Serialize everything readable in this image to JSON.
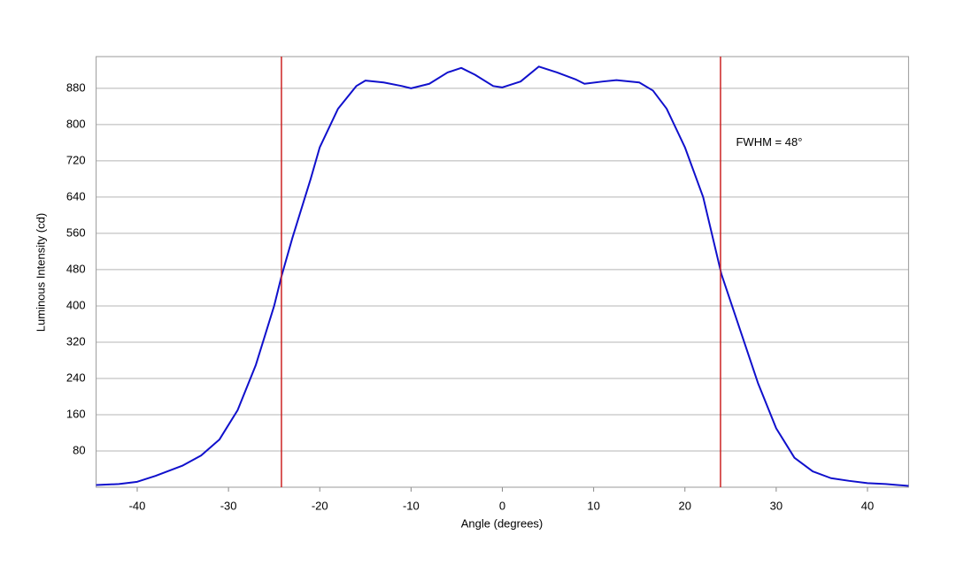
{
  "chart_data": {
    "type": "line",
    "x_label": "Angle (degrees)",
    "y_label": "Luminous Intensity (cd)",
    "x": [
      -44.5,
      -42,
      -40,
      -38,
      -35,
      -33,
      -31,
      -29,
      -27,
      -25,
      -24.2,
      -23,
      -21,
      -20,
      -18,
      -16,
      -15,
      -13,
      -11,
      -10,
      -8,
      -6,
      -4.5,
      -3,
      -1,
      0,
      2,
      4,
      6,
      8,
      9,
      11,
      12.5,
      15,
      16.5,
      18,
      20,
      22,
      24,
      26,
      28,
      30,
      32,
      34,
      36,
      38,
      40,
      42,
      44.5
    ],
    "series": [
      {
        "color": "#1010cc",
        "values": [
          5,
          7,
          12,
          25,
          48,
          70,
          105,
          170,
          270,
          400,
          465,
          550,
          680,
          750,
          835,
          885,
          897,
          893,
          885,
          880,
          890,
          915,
          925,
          910,
          885,
          882,
          895,
          928,
          915,
          900,
          890,
          895,
          898,
          893,
          875,
          835,
          750,
          640,
          470,
          350,
          230,
          130,
          65,
          35,
          20,
          14,
          9,
          7,
          3
        ]
      }
    ],
    "vlines": {
      "color": "#cc2222",
      "x": [
        -24.2,
        23.9
      ]
    },
    "annotation": "FWHM = 48°",
    "xlim": [
      -44.5,
      44.5
    ],
    "xticks": [
      -40,
      -30,
      -20,
      -10,
      0,
      10,
      20,
      30,
      40
    ],
    "ylim": [
      0,
      950
    ],
    "yticks": [
      80,
      160,
      240,
      320,
      400,
      480,
      560,
      640,
      720,
      800,
      880
    ],
    "grid": true
  }
}
